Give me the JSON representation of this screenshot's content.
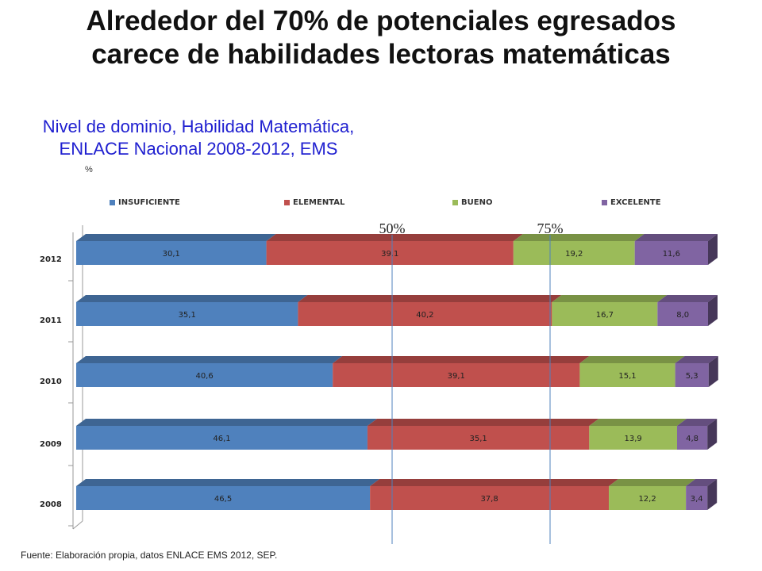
{
  "slide": {
    "title_line1": "Alrededor del 70% de potenciales egresados",
    "title_line2": "carece de habilidades lectoras matemáticas",
    "subtitle_line1": "Nivel de dominio, Habilidad Matemática,",
    "subtitle_line2": "ENLACE Nacional 2008-2012, EMS",
    "unit": "%",
    "source": "Fuente: Elaboración propia, datos ENLACE EMS 2012, SEP."
  },
  "chart_data": {
    "type": "bar",
    "orientation": "horizontal",
    "stacked": true,
    "style": "3d",
    "categories": [
      "2012",
      "2011",
      "2010",
      "2009",
      "2008"
    ],
    "series": [
      {
        "name": "INSUFICIENTE",
        "color": "#4f81bd",
        "values": [
          30.1,
          35.1,
          40.6,
          46.1,
          46.5
        ],
        "labels": [
          "30,1",
          "35,1",
          "40,6",
          "46,1",
          "46,5"
        ]
      },
      {
        "name": "ELEMENTAL",
        "color": "#c0504d",
        "values": [
          39.1,
          40.2,
          39.1,
          35.1,
          37.8
        ],
        "labels": [
          "39,1",
          "40,2",
          "39,1",
          "35,1",
          "37,8"
        ]
      },
      {
        "name": "BUENO",
        "color": "#9bbb59",
        "values": [
          19.2,
          16.7,
          15.1,
          13.9,
          12.2
        ],
        "labels": [
          "19,2",
          "16,7",
          "15,1",
          "13,9",
          "12,2"
        ]
      },
      {
        "name": "EXCELENTE",
        "color": "#8064a2",
        "values": [
          11.6,
          8.0,
          5.3,
          4.8,
          3.4
        ],
        "labels": [
          "11,6",
          "8,0",
          "5,3",
          "4,8",
          "3,4"
        ]
      }
    ],
    "legend_position": "top",
    "reference_lines": [
      {
        "value": 50,
        "label": "50%"
      },
      {
        "value": 75,
        "label": "75%"
      }
    ],
    "xlim": [
      0,
      100
    ]
  }
}
